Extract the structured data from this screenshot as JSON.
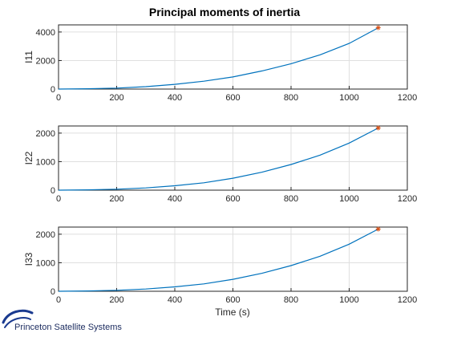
{
  "chart_data": {
    "type": "line",
    "title": "Principal moments of inertia",
    "xlabel": "Time (s)",
    "xlim": [
      0,
      1200
    ],
    "xticks": [
      0,
      200,
      400,
      600,
      800,
      1000,
      1200
    ],
    "line_color": "#0072bd",
    "end_marker_color": "#d95319",
    "grid": true,
    "subplots": [
      {
        "ylabel": "I11",
        "ylim": [
          0,
          4500
        ],
        "yticks": [
          0,
          2000,
          4000
        ],
        "series": [
          {
            "x": [
              0,
              100,
              200,
              300,
              400,
              500,
              600,
              700,
              800,
              900,
              1000,
              1100
            ],
            "values": [
              0,
              20,
              70,
              170,
              330,
              550,
              850,
              1270,
              1780,
              2400,
              3200,
              4300
            ]
          }
        ],
        "end_point": {
          "x": 1100,
          "y": 4300
        }
      },
      {
        "ylabel": "I22",
        "ylim": [
          0,
          2250
        ],
        "yticks": [
          0,
          1000,
          2000
        ],
        "series": [
          {
            "x": [
              0,
              100,
              200,
              300,
              400,
              500,
              600,
              700,
              800,
              900,
              1000,
              1100
            ],
            "values": [
              0,
              10,
              35,
              80,
              155,
              260,
              420,
              630,
              900,
              1230,
              1650,
              2180
            ]
          }
        ],
        "end_point": {
          "x": 1100,
          "y": 2180
        }
      },
      {
        "ylabel": "I33",
        "ylim": [
          0,
          2250
        ],
        "yticks": [
          0,
          1000,
          2000
        ],
        "series": [
          {
            "x": [
              0,
              100,
              200,
              300,
              400,
              500,
              600,
              700,
              800,
              900,
              1000,
              1100
            ],
            "values": [
              0,
              10,
              35,
              80,
              155,
              260,
              420,
              630,
              900,
              1230,
              1650,
              2180
            ]
          }
        ],
        "end_point": {
          "x": 1100,
          "y": 2180
        }
      }
    ]
  },
  "branding": {
    "company": "Princeton Satellite Systems",
    "logo_color": "#1a3a8f"
  }
}
